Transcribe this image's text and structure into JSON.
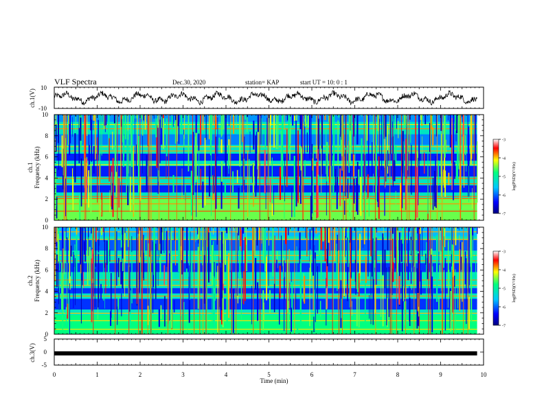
{
  "header": {
    "title": "VLF Spectra",
    "date": "Dec.30, 2020",
    "station": "station= KAP",
    "start_ut": "start  UT =   10: 0  : 1"
  },
  "chart_data": [
    {
      "type": "line",
      "name": "ch1-waveform",
      "ylabel": "ch.1(V)",
      "ylim": [
        -10,
        10
      ],
      "yticks": [
        10,
        -10
      ],
      "xlim": [
        0,
        10
      ],
      "data_end_min": 9.85,
      "trace_color": "#000000"
    },
    {
      "type": "heatmap",
      "name": "ch1-spectrogram",
      "ylabel": [
        "ch.1",
        "Frequency  (kHz)"
      ],
      "ylim": [
        0,
        10
      ],
      "yticks": [
        0,
        2,
        4,
        6,
        8,
        10
      ],
      "xlim": [
        0,
        10
      ],
      "data_end_min": 9.85,
      "colorbar": {
        "label": "log(PSD)(V²/Hz)",
        "range": [
          -7,
          -3
        ],
        "ticks": [
          -3,
          -4,
          -5,
          -6,
          -7
        ],
        "colormap": [
          "#000080",
          "#0000ff",
          "#00c8ff",
          "#00ff80",
          "#ffff00",
          "#ff0000",
          "#ffffff"
        ]
      }
    },
    {
      "type": "heatmap",
      "name": "ch2-spectrogram",
      "ylabel": [
        "ch.2",
        "Frequency  (kHz)"
      ],
      "ylim": [
        0,
        10
      ],
      "yticks": [
        0,
        2,
        4,
        6,
        8,
        10
      ],
      "xlim": [
        0,
        10
      ],
      "data_end_min": 9.85,
      "colorbar": {
        "label": "log(PSD)(V²/Hz)",
        "range": [
          -7,
          -3
        ],
        "ticks": [
          -3,
          -4,
          -5,
          -6,
          -7
        ],
        "colormap": [
          "#000080",
          "#0000ff",
          "#00c8ff",
          "#00ff80",
          "#ffff00",
          "#ff0000",
          "#ffffff"
        ]
      }
    },
    {
      "type": "line",
      "name": "ch3-waveform",
      "ylabel": "ch.3(V)",
      "ylim": [
        -5,
        5
      ],
      "yticks": [
        5,
        0,
        -5
      ],
      "xlim": [
        0,
        10
      ],
      "xticks": [
        0,
        1,
        2,
        3,
        4,
        5,
        6,
        7,
        8,
        9,
        10
      ],
      "xlabel": "Time  (min)",
      "level": -0.5,
      "data_end_min": 9.85,
      "trace_color": "#000000"
    }
  ]
}
